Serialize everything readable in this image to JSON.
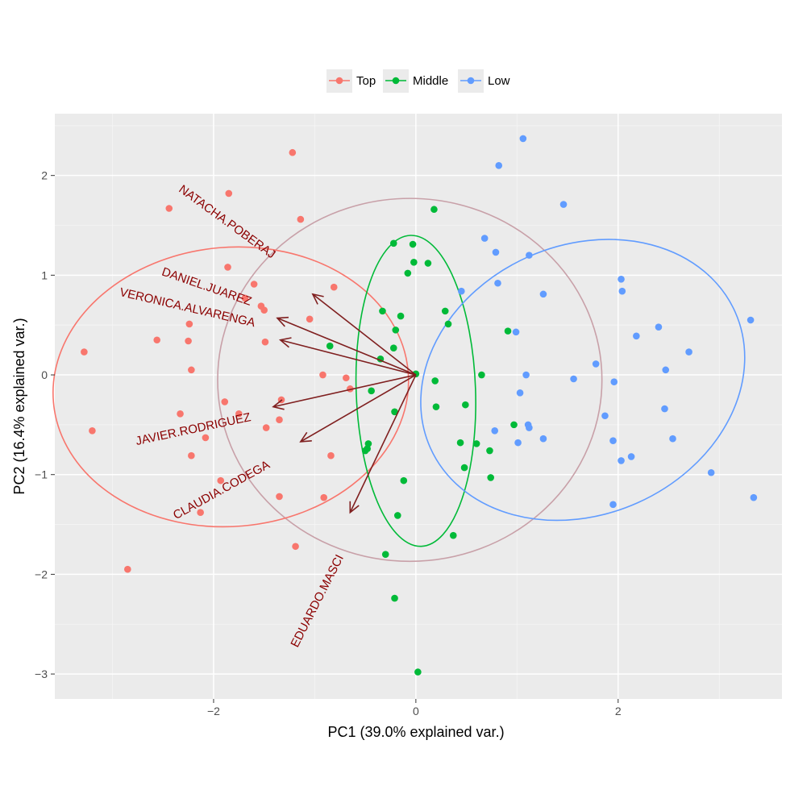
{
  "chart_data": {
    "type": "scatter",
    "xlabel": "PC1 (39.0% explained var.)",
    "ylabel": "PC2 (16.4% explained var.)",
    "xlim": [
      -3.57,
      3.62
    ],
    "ylim": [
      -3.25,
      2.62
    ],
    "x_ticks": [
      -2,
      0,
      2
    ],
    "y_ticks": [
      -3,
      -2,
      -1,
      0,
      1,
      2
    ],
    "x_tick_labels": [
      "−2",
      "0",
      "2"
    ],
    "y_tick_labels": [
      "−3",
      "−2",
      "−1",
      "0",
      "1",
      "2"
    ],
    "grid": true,
    "legend_position": "top",
    "series": [
      {
        "name": "Top",
        "color": "#F8766D",
        "points": [
          [
            -1.22,
            2.23
          ],
          [
            -1.85,
            1.82
          ],
          [
            -2.44,
            1.67
          ],
          [
            -1.14,
            1.56
          ],
          [
            -1.86,
            1.08
          ],
          [
            -1.6,
            0.91
          ],
          [
            -0.81,
            0.88
          ],
          [
            -1.69,
            0.77
          ],
          [
            -1.53,
            0.69
          ],
          [
            -1.5,
            0.65
          ],
          [
            -1.05,
            0.56
          ],
          [
            -2.24,
            0.51
          ],
          [
            -2.56,
            0.35
          ],
          [
            -2.25,
            0.34
          ],
          [
            -1.49,
            0.33
          ],
          [
            -3.28,
            0.23
          ],
          [
            -2.22,
            0.05
          ],
          [
            -0.92,
            0.0
          ],
          [
            -0.69,
            -0.03
          ],
          [
            -0.65,
            -0.14
          ],
          [
            -1.33,
            -0.25
          ],
          [
            -1.89,
            -0.27
          ],
          [
            -2.33,
            -0.39
          ],
          [
            -1.75,
            -0.39
          ],
          [
            -1.35,
            -0.45
          ],
          [
            -1.48,
            -0.53
          ],
          [
            -3.2,
            -0.56
          ],
          [
            -2.08,
            -0.63
          ],
          [
            -2.22,
            -0.81
          ],
          [
            -0.84,
            -0.81
          ],
          [
            -1.93,
            -1.06
          ],
          [
            -1.35,
            -1.22
          ],
          [
            -0.91,
            -1.23
          ],
          [
            -2.13,
            -1.38
          ],
          [
            -1.19,
            -1.72
          ],
          [
            -2.85,
            -1.95
          ]
        ]
      },
      {
        "name": "Middle",
        "color": "#00BA38",
        "points": [
          [
            0.18,
            1.66
          ],
          [
            -0.22,
            1.32
          ],
          [
            -0.03,
            1.31
          ],
          [
            0.12,
            1.12
          ],
          [
            -0.02,
            1.13
          ],
          [
            -0.08,
            1.02
          ],
          [
            -0.33,
            0.64
          ],
          [
            0.29,
            0.64
          ],
          [
            -0.15,
            0.59
          ],
          [
            0.32,
            0.51
          ],
          [
            -0.2,
            0.45
          ],
          [
            0.91,
            0.44
          ],
          [
            -0.85,
            0.29
          ],
          [
            -0.22,
            0.27
          ],
          [
            -0.35,
            0.16
          ],
          [
            0.0,
            0.01
          ],
          [
            0.65,
            0.0
          ],
          [
            0.19,
            -0.06
          ],
          [
            -0.44,
            -0.16
          ],
          [
            0.49,
            -0.3
          ],
          [
            0.2,
            -0.32
          ],
          [
            -0.21,
            -0.37
          ],
          [
            0.97,
            -0.5
          ],
          [
            0.44,
            -0.68
          ],
          [
            0.6,
            -0.69
          ],
          [
            -0.47,
            -0.69
          ],
          [
            -0.48,
            -0.74
          ],
          [
            -0.5,
            -0.76
          ],
          [
            0.73,
            -0.76
          ],
          [
            0.48,
            -0.93
          ],
          [
            0.74,
            -1.03
          ],
          [
            -0.12,
            -1.06
          ],
          [
            -0.18,
            -1.41
          ],
          [
            0.37,
            -1.61
          ],
          [
            -0.3,
            -1.8
          ],
          [
            -0.21,
            -2.24
          ],
          [
            0.02,
            -2.98
          ]
        ]
      },
      {
        "name": "Low",
        "color": "#619CFF",
        "points": [
          [
            1.06,
            2.37
          ],
          [
            0.82,
            2.1
          ],
          [
            1.46,
            1.71
          ],
          [
            0.68,
            1.37
          ],
          [
            0.79,
            1.23
          ],
          [
            1.12,
            1.2
          ],
          [
            2.03,
            0.96
          ],
          [
            0.81,
            0.92
          ],
          [
            0.45,
            0.84
          ],
          [
            2.04,
            0.84
          ],
          [
            1.26,
            0.81
          ],
          [
            2.4,
            0.48
          ],
          [
            3.31,
            0.55
          ],
          [
            0.99,
            0.43
          ],
          [
            2.18,
            0.39
          ],
          [
            2.7,
            0.23
          ],
          [
            1.78,
            0.11
          ],
          [
            2.47,
            0.05
          ],
          [
            1.09,
            0.0
          ],
          [
            1.56,
            -0.04
          ],
          [
            1.96,
            -0.07
          ],
          [
            1.03,
            -0.18
          ],
          [
            2.46,
            -0.34
          ],
          [
            1.87,
            -0.41
          ],
          [
            1.11,
            -0.5
          ],
          [
            1.12,
            -0.53
          ],
          [
            0.78,
            -0.56
          ],
          [
            1.26,
            -0.64
          ],
          [
            2.54,
            -0.64
          ],
          [
            1.01,
            -0.68
          ],
          [
            1.95,
            -0.66
          ],
          [
            2.03,
            -0.86
          ],
          [
            2.13,
            -0.82
          ],
          [
            2.92,
            -0.98
          ],
          [
            3.34,
            -1.23
          ],
          [
            1.95,
            -1.3
          ]
        ]
      }
    ],
    "ellipses": [
      {
        "series": "Top",
        "color": "#F8766D",
        "cx": -1.83,
        "cy": -0.12,
        "rx": 1.76,
        "ry": 1.4,
        "angle_deg": -5
      },
      {
        "series": "Middle",
        "color": "#00BA38",
        "cx": 0.0,
        "cy": -0.16,
        "rx": 0.59,
        "ry": 1.56,
        "angle_deg": -2
      },
      {
        "series": "Low",
        "color": "#619CFF",
        "cx": 1.65,
        "cy": -0.05,
        "rx": 1.65,
        "ry": 1.35,
        "angle_deg": -24
      },
      {
        "series": "All",
        "color": "#C8A0A8",
        "cx": -0.06,
        "cy": -0.05,
        "rx": 1.9,
        "ry": 1.82,
        "angle_deg": 0
      }
    ],
    "loadings": [
      {
        "label": "NATACHA.POBERAJ",
        "x_end": -1.02,
        "y_end": 0.81,
        "label_x": -1.87,
        "label_y": 1.53,
        "angle_deg": 36
      },
      {
        "label": "DANIEL.JUAREZ",
        "x_end": -1.37,
        "y_end": 0.57,
        "label_x": -2.07,
        "label_y": 0.88,
        "angle_deg": 19
      },
      {
        "label": "VERONICA.ALVARENGA",
        "x_end": -1.34,
        "y_end": 0.35,
        "label_x": -2.26,
        "label_y": 0.67,
        "angle_deg": 13
      },
      {
        "label": "JAVIER.RODRIGUEZ",
        "x_end": -1.41,
        "y_end": -0.32,
        "label_x": -2.2,
        "label_y": -0.55,
        "angle_deg": -12
      },
      {
        "label": "CLAUDIA.CODEGA",
        "x_end": -1.14,
        "y_end": -0.67,
        "label_x": -1.92,
        "label_y": -1.16,
        "angle_deg": -29
      },
      {
        "label": "EDUARDO.MASCI",
        "x_end": -0.65,
        "y_end": -1.38,
        "label_x": -0.97,
        "label_y": -2.27,
        "angle_deg": -63
      }
    ],
    "loading_color": "#7F1F1F",
    "loading_label_color": "#8B0000"
  }
}
